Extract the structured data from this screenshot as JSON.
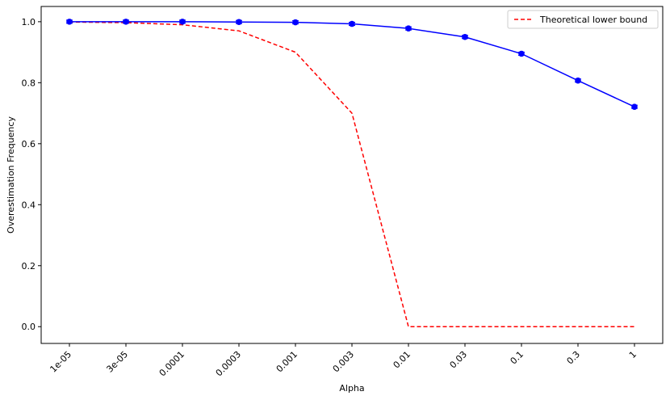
{
  "chart_data": {
    "type": "line",
    "title": "",
    "xlabel": "Alpha",
    "ylabel": "Overestimation Frequency",
    "categories": [
      "1e-05",
      "3e-05",
      "0.0001",
      "0.0003",
      "0.001",
      "0.003",
      "0.01",
      "0.03",
      "0.1",
      "0.3",
      "1"
    ],
    "yticks": [
      "0.0",
      "0.2",
      "0.4",
      "0.6",
      "0.8",
      "1.0"
    ],
    "ylim": [
      -0.055,
      1.05
    ],
    "grid": false,
    "legend_position": "top-right",
    "legend_label": "Theoretical lower bound",
    "series": [
      {
        "values": [
          1.0,
          1.0,
          1.0,
          0.999,
          0.998,
          0.993,
          0.978,
          0.95,
          0.895,
          0.807,
          0.721
        ],
        "color": "#0000ff",
        "style": "solid",
        "markers": true,
        "errorbars": true
      },
      {
        "name": "Theoretical lower bound",
        "values": [
          0.999,
          0.997,
          0.99,
          0.97,
          0.9,
          0.7,
          0.0,
          0.0,
          0.0,
          0.0,
          0.0
        ],
        "color": "#ff0000",
        "style": "dashed",
        "markers": false
      }
    ]
  }
}
